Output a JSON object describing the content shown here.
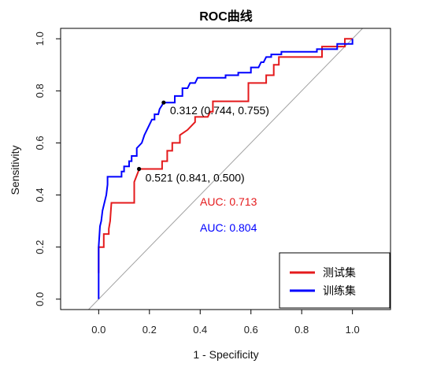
{
  "chart_data": {
    "type": "line",
    "title": "ROC曲线",
    "xlabel": "1 - Specificity",
    "ylabel": "Sensitivity",
    "xlim": [
      -0.15,
      1.15
    ],
    "ylim": [
      -0.04,
      1.04
    ],
    "x_ticks": [
      "0.0",
      "0.2",
      "0.4",
      "0.6",
      "0.8",
      "1.0"
    ],
    "y_ticks": [
      "0.0",
      "0.2",
      "0.4",
      "0.6",
      "0.8",
      "1.0"
    ],
    "grid": false,
    "legend_position": "bottom-right",
    "series": [
      {
        "name": "测试集",
        "color": "#e41a1c",
        "points": [
          [
            0,
            0.1
          ],
          [
            0,
            0.2
          ],
          [
            0.02,
            0.2
          ],
          [
            0.02,
            0.25
          ],
          [
            0.04,
            0.25
          ],
          [
            0.04,
            0.27
          ],
          [
            0.045,
            0.3
          ],
          [
            0.05,
            0.37
          ],
          [
            0.14,
            0.37
          ],
          [
            0.14,
            0.45
          ],
          [
            0.16,
            0.5
          ],
          [
            0.25,
            0.5
          ],
          [
            0.25,
            0.53
          ],
          [
            0.27,
            0.53
          ],
          [
            0.27,
            0.57
          ],
          [
            0.29,
            0.57
          ],
          [
            0.29,
            0.6
          ],
          [
            0.32,
            0.6
          ],
          [
            0.32,
            0.63
          ],
          [
            0.35,
            0.65
          ],
          [
            0.38,
            0.68
          ],
          [
            0.38,
            0.7
          ],
          [
            0.43,
            0.7
          ],
          [
            0.44,
            0.72
          ],
          [
            0.45,
            0.72
          ],
          [
            0.45,
            0.76
          ],
          [
            0.59,
            0.76
          ],
          [
            0.59,
            0.83
          ],
          [
            0.66,
            0.83
          ],
          [
            0.66,
            0.86
          ],
          [
            0.69,
            0.86
          ],
          [
            0.69,
            0.9
          ],
          [
            0.71,
            0.9
          ],
          [
            0.71,
            0.93
          ],
          [
            0.88,
            0.93
          ],
          [
            0.88,
            0.97
          ],
          [
            0.97,
            0.97
          ],
          [
            0.97,
            1.0
          ],
          [
            1,
            1.0
          ]
        ],
        "threshold_point": {
          "x": 0.159,
          "y": 0.5,
          "label": "0.521 (0.841, 0.500)"
        },
        "auc_label": "AUC: 0.713"
      },
      {
        "name": "训练集",
        "color": "#0000ff",
        "points": [
          [
            0,
            0
          ],
          [
            0,
            0.2
          ],
          [
            0.005,
            0.28
          ],
          [
            0.01,
            0.3
          ],
          [
            0.015,
            0.34
          ],
          [
            0.02,
            0.36
          ],
          [
            0.025,
            0.38
          ],
          [
            0.03,
            0.4
          ],
          [
            0.035,
            0.44
          ],
          [
            0.035,
            0.47
          ],
          [
            0.09,
            0.47
          ],
          [
            0.09,
            0.49
          ],
          [
            0.1,
            0.49
          ],
          [
            0.1,
            0.51
          ],
          [
            0.12,
            0.51
          ],
          [
            0.12,
            0.53
          ],
          [
            0.13,
            0.53
          ],
          [
            0.13,
            0.55
          ],
          [
            0.15,
            0.55
          ],
          [
            0.15,
            0.58
          ],
          [
            0.17,
            0.6
          ],
          [
            0.18,
            0.63
          ],
          [
            0.19,
            0.65
          ],
          [
            0.2,
            0.67
          ],
          [
            0.21,
            0.69
          ],
          [
            0.22,
            0.69
          ],
          [
            0.22,
            0.71
          ],
          [
            0.235,
            0.71
          ],
          [
            0.24,
            0.73
          ],
          [
            0.256,
            0.755
          ],
          [
            0.3,
            0.755
          ],
          [
            0.3,
            0.78
          ],
          [
            0.33,
            0.78
          ],
          [
            0.33,
            0.81
          ],
          [
            0.35,
            0.81
          ],
          [
            0.36,
            0.83
          ],
          [
            0.38,
            0.83
          ],
          [
            0.39,
            0.85
          ],
          [
            0.5,
            0.85
          ],
          [
            0.5,
            0.86
          ],
          [
            0.55,
            0.86
          ],
          [
            0.55,
            0.87
          ],
          [
            0.6,
            0.87
          ],
          [
            0.6,
            0.89
          ],
          [
            0.63,
            0.89
          ],
          [
            0.64,
            0.91
          ],
          [
            0.65,
            0.91
          ],
          [
            0.66,
            0.93
          ],
          [
            0.68,
            0.93
          ],
          [
            0.68,
            0.94
          ],
          [
            0.72,
            0.94
          ],
          [
            0.72,
            0.95
          ],
          [
            0.86,
            0.95
          ],
          [
            0.86,
            0.96
          ],
          [
            0.94,
            0.96
          ],
          [
            0.94,
            0.98
          ],
          [
            1,
            0.98
          ],
          [
            1,
            1.0
          ]
        ],
        "threshold_point": {
          "x": 0.256,
          "y": 0.755,
          "label": "0.312 (0.744, 0.755)"
        },
        "auc_label": "AUC: 0.804"
      }
    ],
    "reference_line": {
      "from": [
        0,
        0
      ],
      "to": [
        1,
        1
      ],
      "color": "#a0a0a0"
    }
  }
}
